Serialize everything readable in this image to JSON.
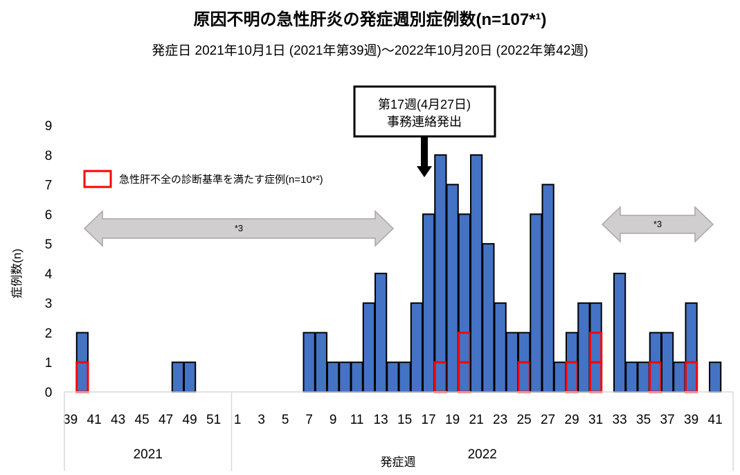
{
  "chart_data": {
    "type": "bar",
    "title": "原因不明の急性肝炎の発症週別症例数(n=107*¹)",
    "subtitle": "発症日 2021年10月1日 (2021年第39週)～2022年10月20日 (2022年第42週)",
    "xlabel": "発症週",
    "ylabel": "症例数(n)",
    "ylim": [
      0,
      9
    ],
    "yticks": [
      "0",
      "1",
      "2",
      "3",
      "4",
      "5",
      "6",
      "7",
      "8",
      "9"
    ],
    "grid": false,
    "groups": [
      {
        "year": "2021",
        "weeks": [
          39,
          40,
          41,
          42,
          43,
          44,
          45,
          46,
          47,
          48,
          49,
          50,
          51,
          52
        ],
        "values": [
          0,
          2,
          0,
          0,
          0,
          0,
          0,
          0,
          0,
          1,
          1,
          0,
          0,
          0
        ],
        "acute_liver_failure": [
          0,
          1,
          0,
          0,
          0,
          0,
          0,
          0,
          0,
          0,
          0,
          0,
          0,
          0
        ]
      },
      {
        "year": "2022",
        "weeks": [
          1,
          2,
          3,
          4,
          5,
          6,
          7,
          8,
          9,
          10,
          11,
          12,
          13,
          14,
          15,
          16,
          17,
          18,
          19,
          20,
          21,
          22,
          23,
          24,
          25,
          26,
          27,
          28,
          29,
          30,
          31,
          32,
          33,
          34,
          35,
          36,
          37,
          38,
          39,
          40,
          41,
          42
        ],
        "values": [
          0,
          0,
          0,
          0,
          0,
          0,
          2,
          2,
          1,
          1,
          1,
          3,
          4,
          1,
          1,
          3,
          6,
          8,
          7,
          6,
          8,
          5,
          3,
          2,
          2,
          6,
          7,
          1,
          2,
          3,
          3,
          0,
          4,
          1,
          1,
          2,
          2,
          1,
          3,
          0,
          1,
          0
        ],
        "acute_liver_failure": [
          0,
          0,
          0,
          0,
          0,
          0,
          0,
          0,
          0,
          0,
          0,
          0,
          0,
          0,
          0,
          0,
          0,
          1,
          0,
          2,
          0,
          0,
          0,
          0,
          1,
          0,
          0,
          0,
          1,
          0,
          2,
          0,
          0,
          0,
          0,
          1,
          0,
          0,
          1,
          0,
          0,
          0
        ]
      }
    ],
    "tick_labels_2021": [
      "39",
      "41",
      "43",
      "45",
      "47",
      "49",
      "51"
    ],
    "tick_labels_2022": [
      "1",
      "3",
      "5",
      "7",
      "9",
      "11",
      "13",
      "15",
      "17",
      "19",
      "21",
      "23",
      "25",
      "27",
      "29",
      "31",
      "33",
      "35",
      "37",
      "39",
      "41"
    ],
    "bar_color": "#4472C4",
    "highlight_color": "#FF0000",
    "legend": {
      "label": "急性肝不全の診断基準を満たす症例(n=10*²)",
      "placement": "top-left"
    },
    "annotations": {
      "callout_line1": "第17週(4月27日)",
      "callout_line2": "事務連絡発出",
      "range_left": "*3",
      "range_right": "*3"
    }
  }
}
